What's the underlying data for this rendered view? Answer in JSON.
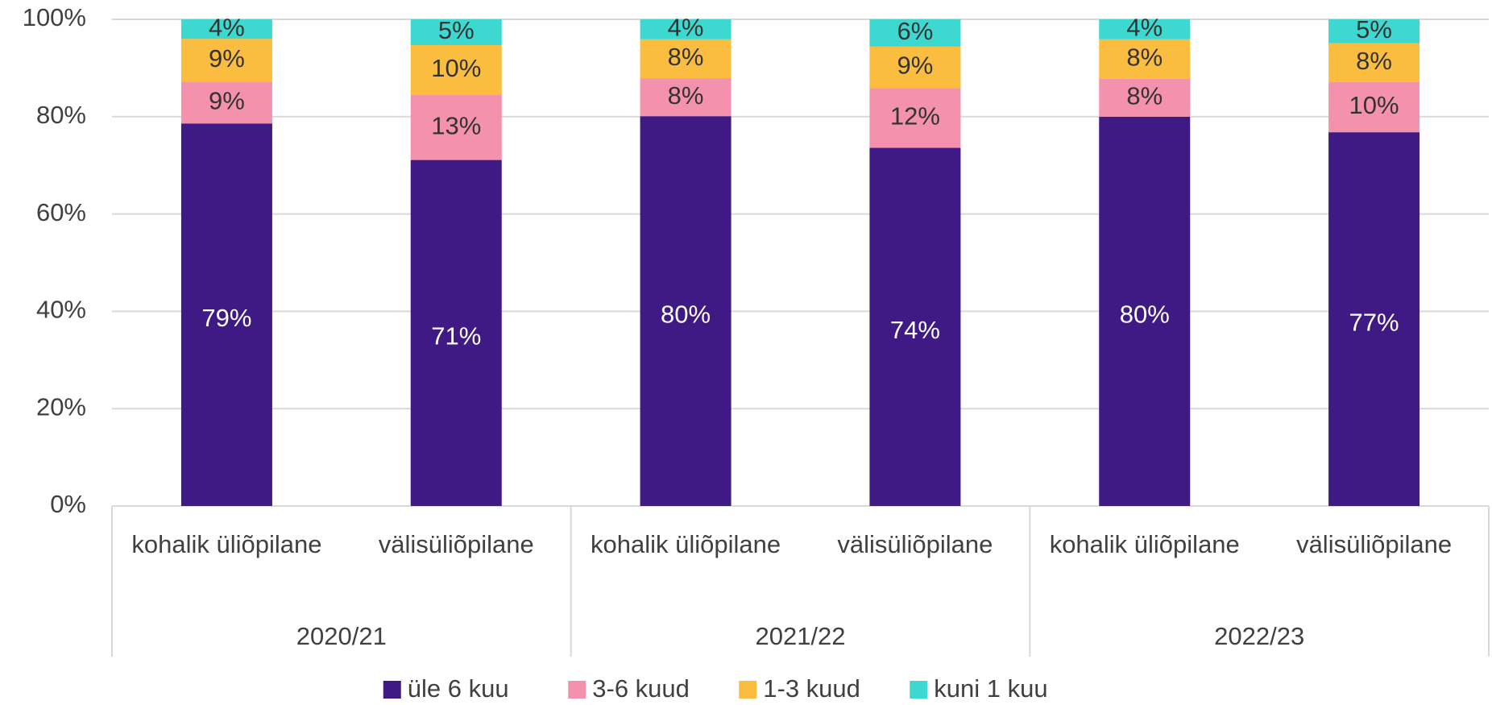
{
  "chart_data": {
    "type": "stacked_bar",
    "groups": [
      "2020/21",
      "2021/22",
      "2022/23"
    ],
    "categories": [
      "kohalik üliõpilane",
      "välisüliõpilane",
      "kohalik üliõpilane",
      "välisüliõpilane",
      "kohalik üliõpilane",
      "välisüliõpilane"
    ],
    "series": [
      {
        "name": "üle 6 kuu",
        "color": "#3f1a84",
        "values": [
          78.6,
          71.1,
          80.1,
          73.6,
          80.0,
          76.8
        ],
        "value_labels": [
          "79%",
          "71%",
          "80%",
          "74%",
          "80%",
          "77%"
        ]
      },
      {
        "name": "3-6 kuud",
        "color": "#f491ad",
        "values": [
          8.6,
          13.4,
          7.8,
          12.3,
          7.8,
          10.3
        ],
        "value_labels": [
          "9%",
          "13%",
          "8%",
          "12%",
          "8%",
          "10%"
        ]
      },
      {
        "name": "1-3 kuud",
        "color": "#fbbd40",
        "values": [
          8.8,
          10.2,
          8.0,
          8.5,
          8.1,
          8.0
        ],
        "value_labels": [
          "9%",
          "10%",
          "8%",
          "9%",
          "8%",
          "8%"
        ]
      },
      {
        "name": "kuni 1 kuu",
        "color": "#3dd8cf",
        "values": [
          4.0,
          5.3,
          4.1,
          5.6,
          4.1,
          4.9
        ],
        "value_labels": [
          "4%",
          "5%",
          "4%",
          "6%",
          "4%",
          "5%"
        ]
      }
    ],
    "ylim": [
      0,
      100
    ],
    "yticks": [
      {
        "value": 0,
        "label": "0%"
      },
      {
        "value": 20,
        "label": "20%"
      },
      {
        "value": 40,
        "label": "40%"
      },
      {
        "value": 60,
        "label": "60%"
      },
      {
        "value": 80,
        "label": "80%"
      },
      {
        "value": 100,
        "label": "100%"
      }
    ],
    "grid": true,
    "legend": "bottom"
  }
}
